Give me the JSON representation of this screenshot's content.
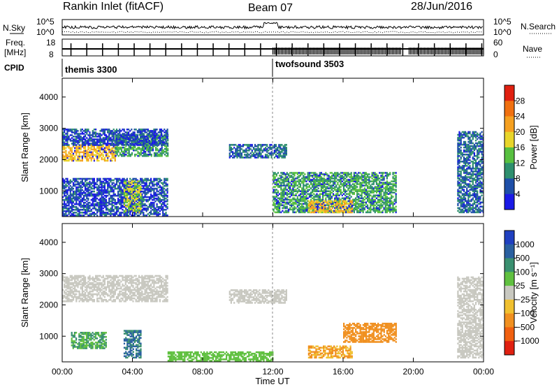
{
  "header": {
    "site": "Rankin Inlet (fitACF)",
    "beam": "Beam 07",
    "date": "28/Jun/2016"
  },
  "side_labels": {
    "nsky": "N.Sky",
    "freq": "Freq.",
    "freq_unit": "[MHz]",
    "cpid": "CPID",
    "nsearch": "N.Search",
    "nave": "Nave"
  },
  "strip_ticks": {
    "noise_top": "10^5",
    "noise_bottom": "10^0",
    "freq_top": "18",
    "freq_bottom": "8",
    "nave_top": "60",
    "nave_bottom": "0"
  },
  "cpid_segments": [
    {
      "name": "themis 3300",
      "start_hour": 0
    },
    {
      "name": "twofsound 3503",
      "start_hour": 12
    }
  ],
  "chart_data": [
    {
      "type": "heatmap",
      "panel": "power",
      "ylabel": "Slant Range [km]",
      "xlabel": "",
      "xlim": [
        0,
        24
      ],
      "ylim": [
        180,
        4600
      ],
      "yticks": [
        "1000",
        "2000",
        "3000",
        "4000"
      ],
      "ytick_values": [
        1000,
        2000,
        3000,
        4000
      ],
      "colorbar": {
        "label": "Power [dB]",
        "ticks": [
          "4",
          "8",
          "12",
          "16",
          "20",
          "24",
          "28"
        ],
        "colors": [
          "#1a1ae6",
          "#1e4fa8",
          "#2e8f6e",
          "#58c040",
          "#e8d52a",
          "#f5a020",
          "#f07010",
          "#e02010"
        ]
      },
      "regions": [
        {
          "t0": 0.0,
          "t1": 3.0,
          "r0": 1950,
          "r1": 2450,
          "level": 20
        },
        {
          "t0": 3.0,
          "t1": 6.0,
          "r0": 2100,
          "r1": 2800,
          "level": 12
        },
        {
          "t0": 0.0,
          "t1": 6.0,
          "r0": 2450,
          "r1": 2950,
          "level": 6
        },
        {
          "t0": 9.5,
          "t1": 12.8,
          "r0": 2050,
          "r1": 2500,
          "level": 8
        },
        {
          "t0": 0.0,
          "t1": 6.0,
          "r0": 200,
          "r1": 1400,
          "level": 6
        },
        {
          "t0": 3.5,
          "t1": 4.5,
          "r0": 300,
          "r1": 1300,
          "level": 16
        },
        {
          "t0": 12.0,
          "t1": 19.0,
          "r0": 300,
          "r1": 1600,
          "level": 12
        },
        {
          "t0": 14.0,
          "t1": 16.5,
          "r0": 300,
          "r1": 700,
          "level": 20
        },
        {
          "t0": 22.5,
          "t1": 24.0,
          "r0": 300,
          "r1": 2900,
          "level": 8
        }
      ]
    },
    {
      "type": "heatmap",
      "panel": "velocity",
      "ylabel": "Slant Range [km]",
      "xlabel": "Time UT",
      "xlim": [
        0,
        24
      ],
      "ylim": [
        180,
        4600
      ],
      "xticks": [
        "00:00",
        "04:00",
        "08:00",
        "12:00",
        "16:00",
        "20:00",
        "00:00"
      ],
      "xtick_values": [
        0,
        4,
        8,
        12,
        16,
        20,
        24
      ],
      "yticks": [
        "1000",
        "2000",
        "3000",
        "4000"
      ],
      "ytick_values": [
        1000,
        2000,
        3000,
        4000
      ],
      "colorbar": {
        "label": "Velocity [m s⁻¹]",
        "ticks": [
          "1000",
          "500",
          "100",
          "25",
          "−25",
          "−100",
          "−500",
          "−1000"
        ],
        "colors": [
          "#2040c0",
          "#2a60a0",
          "#3a9070",
          "#60c040",
          "#c8c8c0",
          "#f0c030",
          "#f09020",
          "#f06010",
          "#e02010"
        ]
      },
      "regions": [
        {
          "t0": 0.0,
          "t1": 6.0,
          "r0": 2100,
          "r1": 2950,
          "level": 0
        },
        {
          "t0": 9.5,
          "t1": 12.8,
          "r0": 2050,
          "r1": 2500,
          "level": 0
        },
        {
          "t0": 0.5,
          "t1": 2.5,
          "r0": 600,
          "r1": 1100,
          "level": 100
        },
        {
          "t0": 3.5,
          "t1": 4.5,
          "r0": 300,
          "r1": 1200,
          "level": 500
        },
        {
          "t0": 6.0,
          "t1": 12.0,
          "r0": 200,
          "r1": 500,
          "level": 60
        },
        {
          "t0": 14.0,
          "t1": 16.5,
          "r0": 300,
          "r1": 700,
          "level": -100
        },
        {
          "t0": 16.0,
          "t1": 19.0,
          "r0": 800,
          "r1": 1400,
          "level": -300
        },
        {
          "t0": 22.5,
          "t1": 24.0,
          "r0": 300,
          "r1": 2900,
          "level": 0
        }
      ]
    }
  ]
}
